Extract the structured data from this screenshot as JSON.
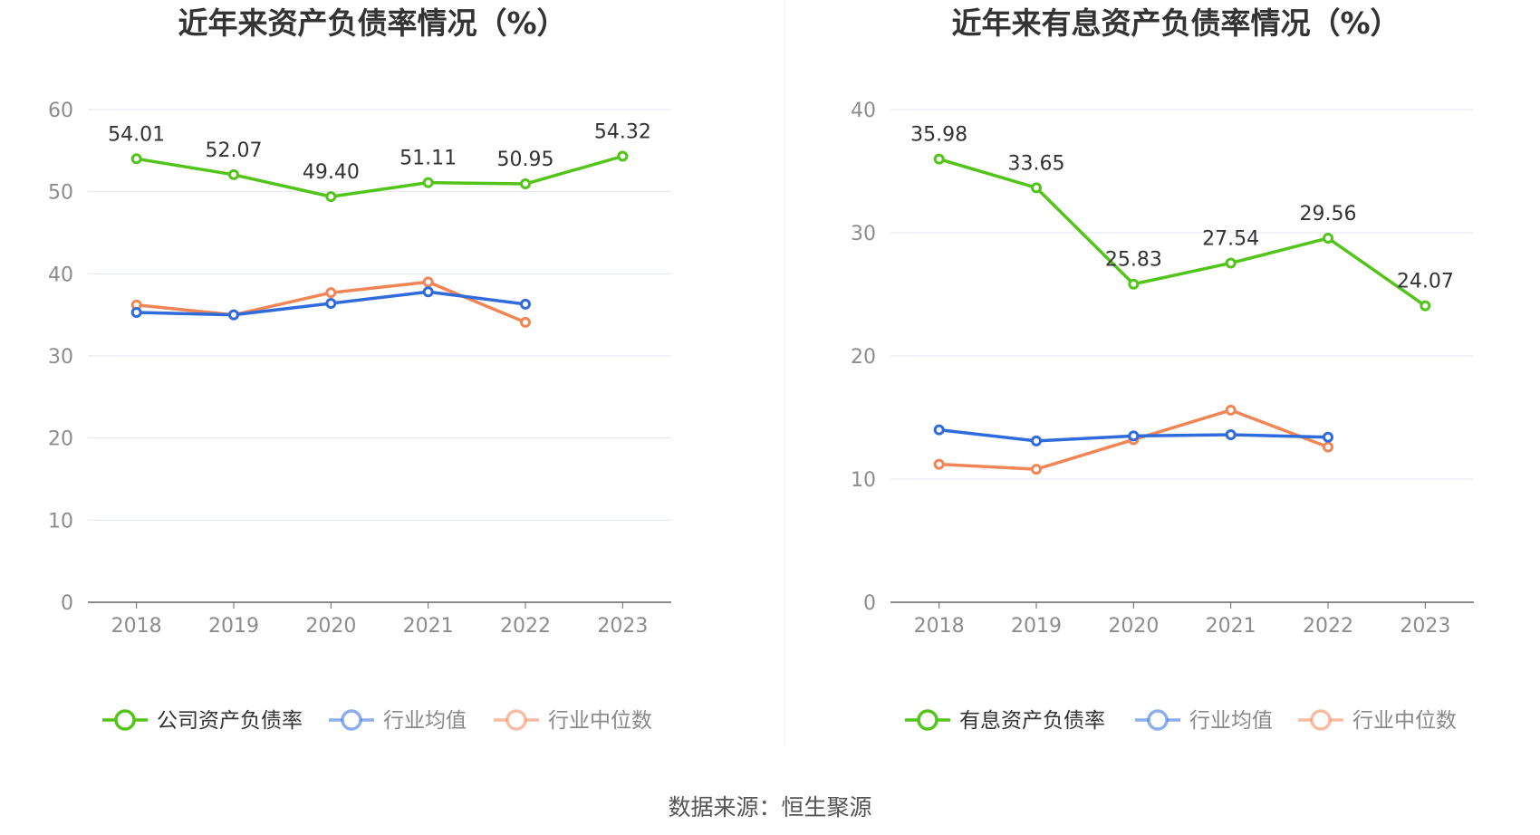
{
  "source_label": "数据来源：恒生聚源",
  "chart_data": [
    {
      "type": "line",
      "title": "近年来资产负债率情况（%）",
      "categories": [
        "2018",
        "2019",
        "2020",
        "2021",
        "2022",
        "2023"
      ],
      "ylim": [
        0,
        60
      ],
      "yticks": [
        0,
        10,
        20,
        30,
        40,
        50,
        60
      ],
      "grid": true,
      "legend_position": "bottom",
      "series": [
        {
          "name": "公司资产负债率",
          "color": "#52c41a",
          "values": [
            54.01,
            52.07,
            49.4,
            51.11,
            50.95,
            54.32
          ],
          "labels": [
            "54.01",
            "52.07",
            "49.40",
            "51.11",
            "50.95",
            "54.32"
          ]
        },
        {
          "name": "行业均值",
          "color": "#2f6bdd",
          "values": [
            35.3,
            35.0,
            36.4,
            37.8,
            36.3,
            null
          ]
        },
        {
          "name": "行业中位数",
          "color": "#f28555",
          "values": [
            36.2,
            35.0,
            37.7,
            39.0,
            34.1,
            null
          ]
        }
      ]
    },
    {
      "type": "line",
      "title": "近年来有息资产负债率情况（%）",
      "categories": [
        "2018",
        "2019",
        "2020",
        "2021",
        "2022",
        "2023"
      ],
      "ylim": [
        0,
        40
      ],
      "yticks": [
        0,
        10,
        20,
        30,
        40
      ],
      "grid": true,
      "legend_position": "bottom",
      "series": [
        {
          "name": "有息资产负债率",
          "color": "#52c41a",
          "values": [
            35.98,
            33.65,
            25.83,
            27.54,
            29.56,
            24.07
          ],
          "labels": [
            "35.98",
            "33.65",
            "25.83",
            "27.54",
            "29.56",
            "24.07"
          ]
        },
        {
          "name": "行业均值",
          "color": "#2f6bdd",
          "values": [
            14.0,
            13.1,
            13.5,
            13.6,
            13.4,
            null
          ]
        },
        {
          "name": "行业中位数",
          "color": "#f28555",
          "values": [
            11.2,
            10.8,
            13.2,
            15.6,
            12.6,
            null
          ]
        }
      ]
    }
  ]
}
